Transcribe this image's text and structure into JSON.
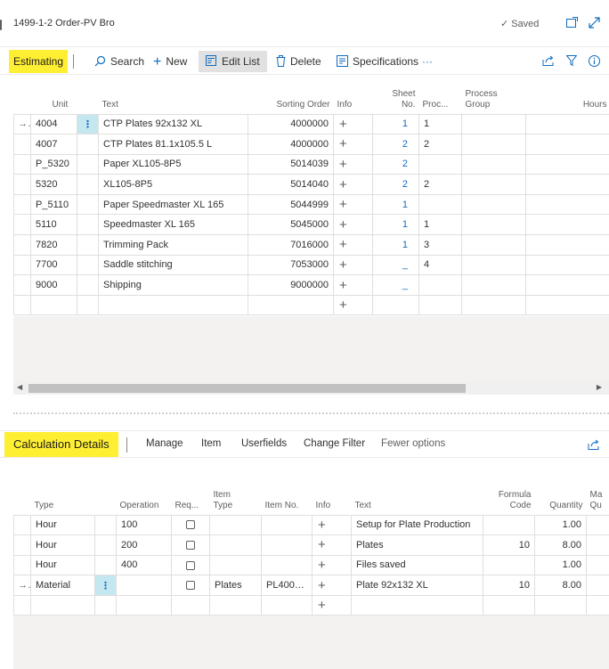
{
  "page": {
    "title": "1499-1-2 Order-PV Bro",
    "saved": "Saved"
  },
  "actionbar": {
    "tab": "Estimating",
    "search": "Search",
    "new": "New",
    "edit_list": "Edit List",
    "delete": "Delete",
    "specifications": "Specifications",
    "more": "···"
  },
  "grid1": {
    "headers": {
      "unit": "Unit",
      "text": "Text",
      "sorting_order": "Sorting Order",
      "info": "Info",
      "sheet_no_1": "Sheet",
      "sheet_no_2": "No.",
      "proc": "Proc...",
      "process_group_1": "Process",
      "process_group_2": "Group",
      "hours": "Hours"
    },
    "rows": [
      {
        "arrow": "→",
        "dots": "⋮",
        "unit": "4004",
        "text": "CTP Plates 92x132 XL",
        "sort": "4000000",
        "info": "+",
        "sheet": "1",
        "proc": "1"
      },
      {
        "unit": "4007",
        "text": "CTP Plates 81.1x105.5 L",
        "sort": "4000000",
        "info": "+",
        "sheet": "2",
        "proc": "2"
      },
      {
        "unit": "P_5320",
        "text": "Paper XL105-8P5",
        "sort": "5014039",
        "info": "+",
        "sheet": "2",
        "proc": ""
      },
      {
        "unit": "5320",
        "text": "XL105-8P5",
        "sort": "5014040",
        "info": "+",
        "sheet": "2",
        "proc": "2"
      },
      {
        "unit": "P_5110",
        "text": "Paper Speedmaster XL 165",
        "sort": "5044999",
        "info": "+",
        "sheet": "1",
        "proc": ""
      },
      {
        "unit": "5110",
        "text": "Speedmaster XL 165",
        "sort": "5045000",
        "info": "+",
        "sheet": "1",
        "proc": "1"
      },
      {
        "unit": "7820",
        "text": "Trimming Pack",
        "sort": "7016000",
        "info": "+",
        "sheet": "1",
        "proc": "3"
      },
      {
        "unit": "7700",
        "text": "Saddle stitching",
        "sort": "7053000",
        "info": "+",
        "sheet": "_",
        "proc": "4"
      },
      {
        "unit": "9000",
        "text": "Shipping",
        "sort": "9000000",
        "info": "+",
        "sheet": "_",
        "proc": ""
      },
      {
        "unit": "",
        "text": "",
        "sort": "",
        "info": "+",
        "sheet": "",
        "proc": ""
      }
    ]
  },
  "section2": {
    "title": "Calculation Details",
    "manage": "Manage",
    "item": "Item",
    "userfields": "Userfields",
    "change_filter": "Change Filter",
    "fewer_options": "Fewer options"
  },
  "grid2": {
    "headers": {
      "type": "Type",
      "operation": "Operation",
      "req": "Req...",
      "item_type_1": "Item",
      "item_type_2": "Type",
      "item_no": "Item No.",
      "info": "Info",
      "text": "Text",
      "formula_code_1": "Formula",
      "formula_code_2": "Code",
      "quantity": "Quantity",
      "ma_1": "Ma",
      "ma_2": "Qu"
    },
    "rows": [
      {
        "type": "Hour",
        "operation": "100",
        "item_type": "",
        "item_no": "",
        "info": "+",
        "text": "Setup for Plate Production",
        "formula": "",
        "quantity": "1.00"
      },
      {
        "type": "Hour",
        "operation": "200",
        "item_type": "",
        "item_no": "",
        "info": "+",
        "text": "Plates",
        "formula": "10",
        "quantity": "8.00"
      },
      {
        "type": "Hour",
        "operation": "400",
        "item_type": "",
        "item_no": "",
        "info": "+",
        "text": "Files saved",
        "formula": "",
        "quantity": "1.00"
      },
      {
        "arrow": "→",
        "dots": "⋮",
        "type": "Material",
        "operation": "",
        "item_type": "Plates",
        "item_no": "PL4000-...",
        "info": "+",
        "text": "Plate 92x132 XL",
        "formula": "10",
        "quantity": "8.00"
      },
      {
        "type": "",
        "operation": "",
        "item_type": "",
        "item_no": "",
        "info": "+",
        "text": "",
        "formula": "",
        "quantity": ""
      }
    ]
  }
}
